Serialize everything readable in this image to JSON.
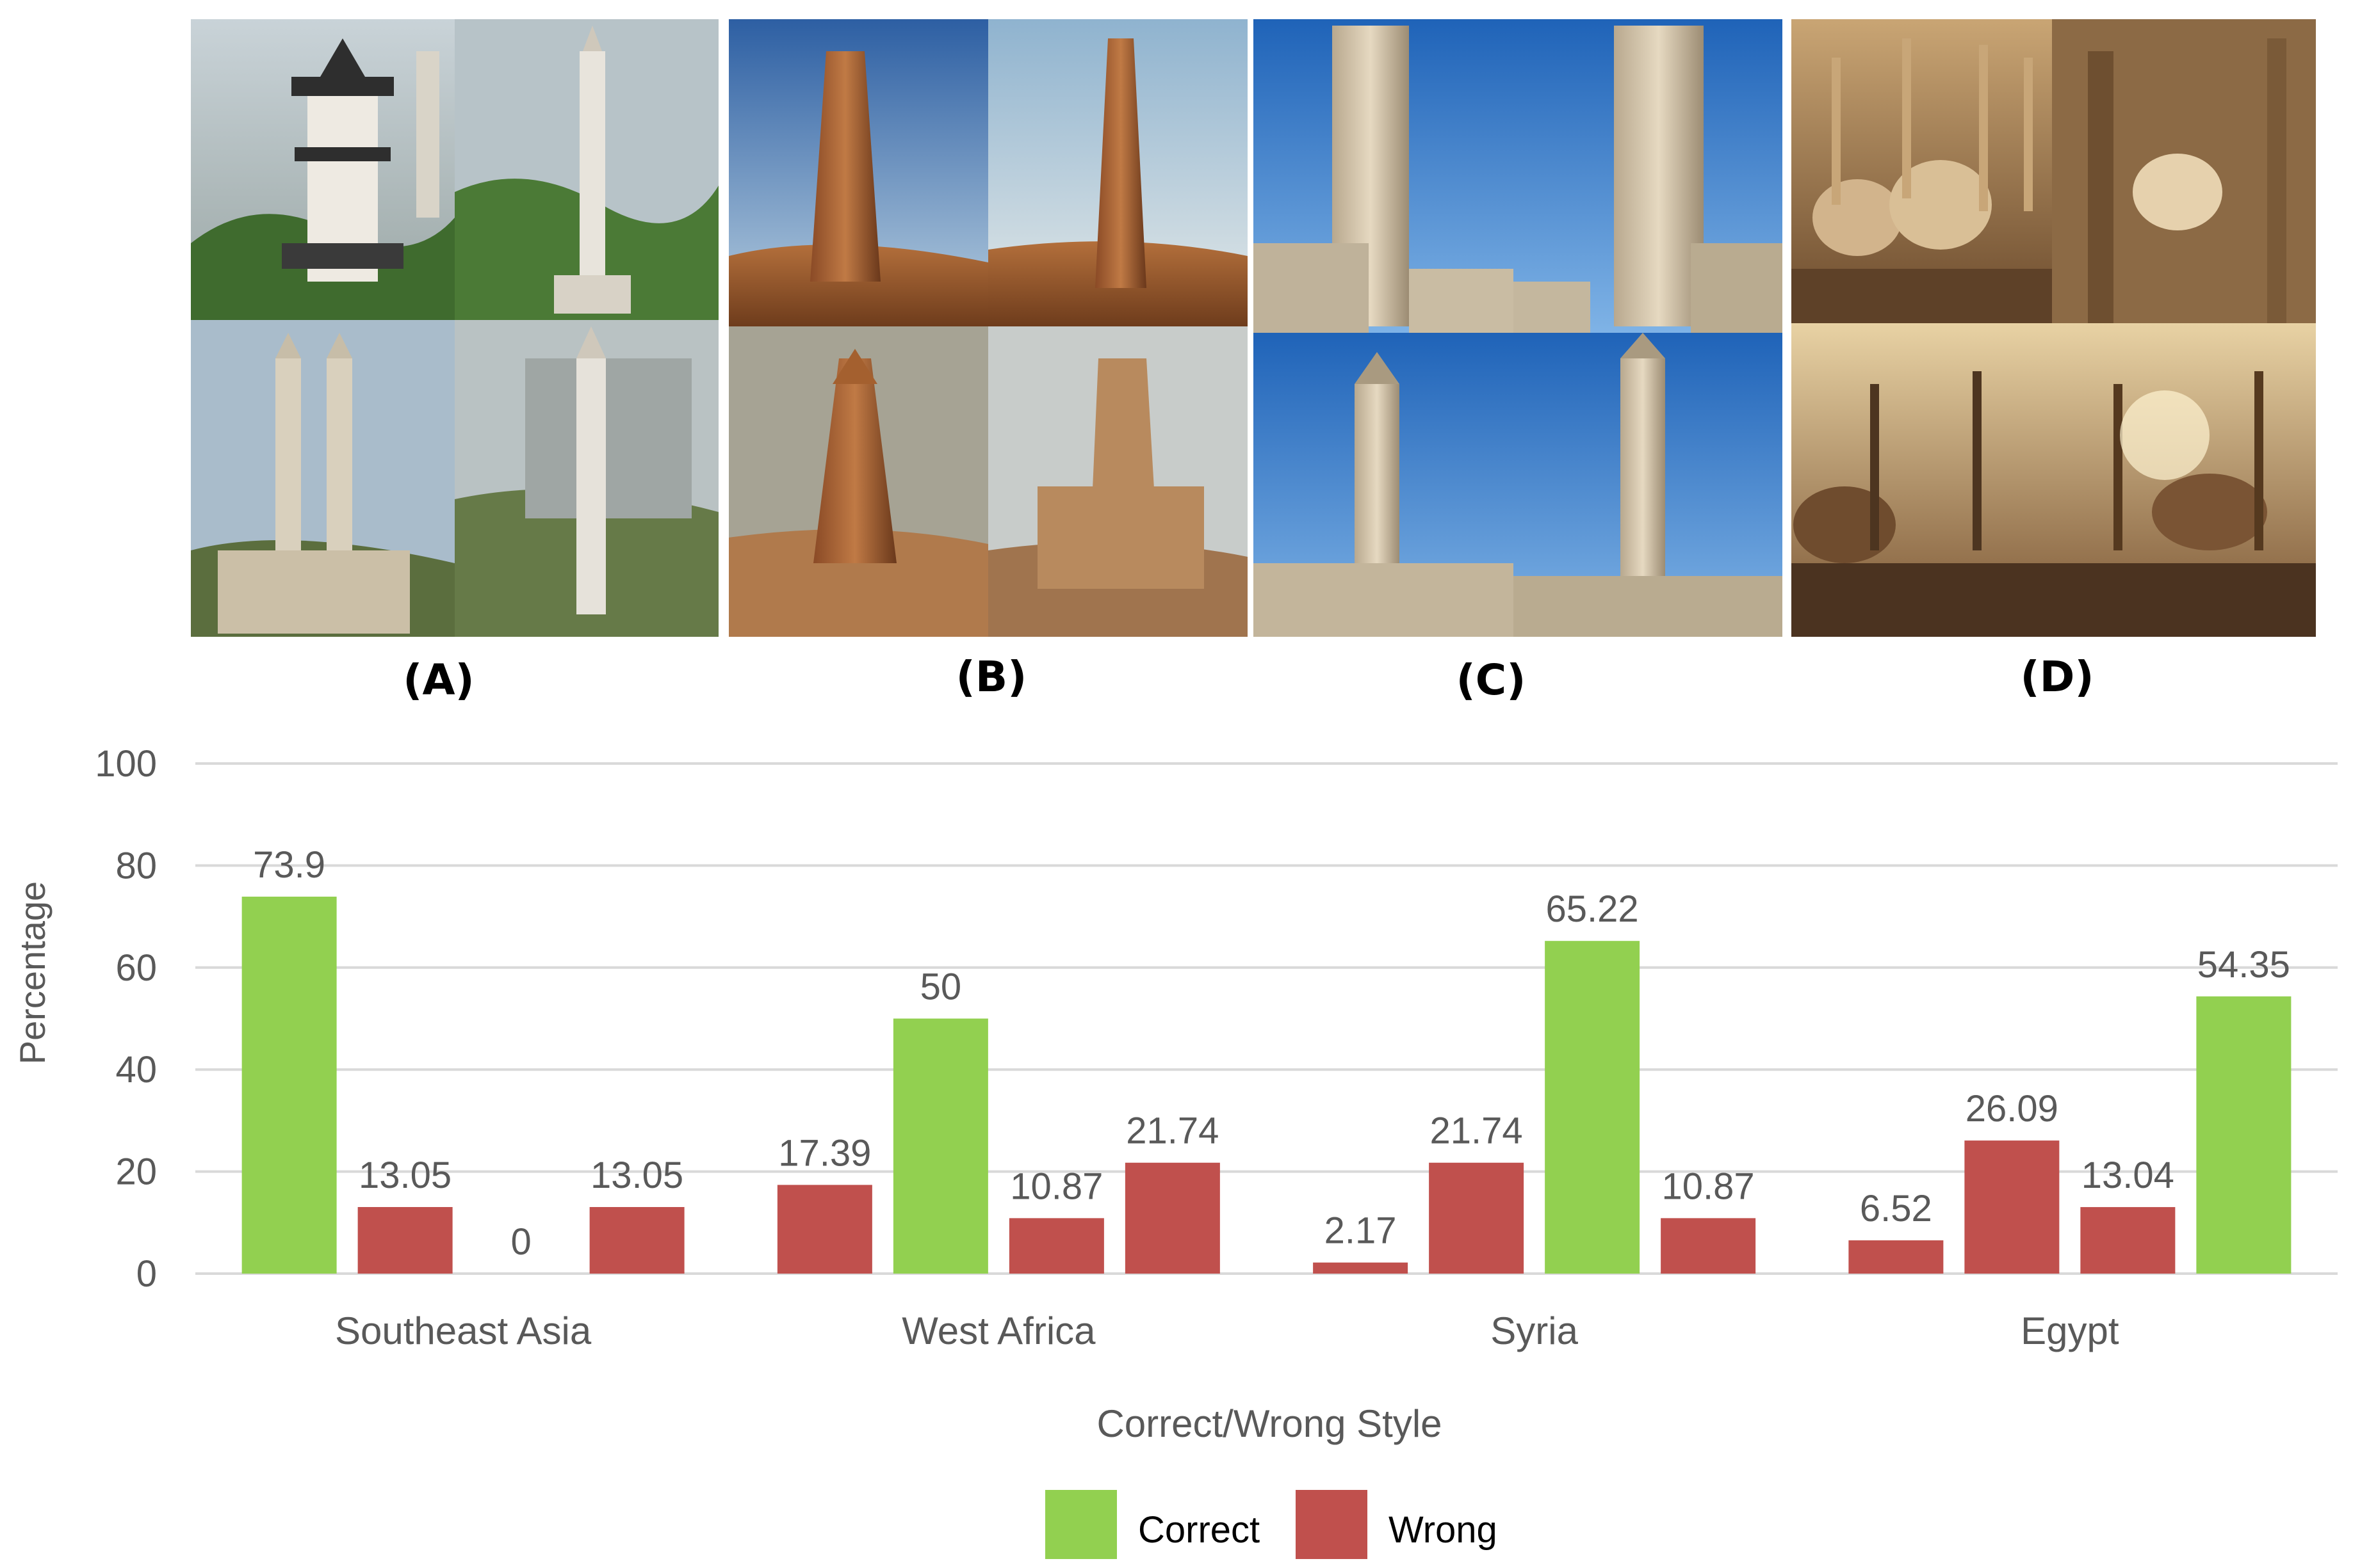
{
  "panels": [
    {
      "label": "(A)",
      "region": "Southeast Asia"
    },
    {
      "label": "(B)",
      "region": "West Africa"
    },
    {
      "label": "(C)",
      "region": "Syria"
    },
    {
      "label": "(D)",
      "region": "Egypt"
    }
  ],
  "colors": {
    "correct": "#92d050",
    "wrong": "#c0504d",
    "grid": "#d9d9d9",
    "axis_text": "#595959"
  },
  "chart_data": {
    "type": "bar",
    "title": "",
    "xlabel": "Correct/Wrong Style",
    "ylabel": "Percentage",
    "ylim": [
      0,
      100
    ],
    "yticks": [
      0,
      20,
      40,
      60,
      80,
      100
    ],
    "grid": true,
    "legend_position": "bottom",
    "categories": [
      "Southeast Asia",
      "West Africa",
      "Syria",
      "Egypt"
    ],
    "legend": [
      {
        "name": "Correct",
        "color": "#92d050"
      },
      {
        "name": "Wrong",
        "color": "#c0504d"
      }
    ],
    "groups": [
      {
        "category": "Southeast Asia",
        "bars": [
          {
            "value": 73.9,
            "label": "73.9",
            "status": "Correct"
          },
          {
            "value": 13.05,
            "label": "13.05",
            "status": "Wrong"
          },
          {
            "value": 0,
            "label": "0",
            "status": "Wrong"
          },
          {
            "value": 13.05,
            "label": "13.05",
            "status": "Wrong"
          }
        ]
      },
      {
        "category": "West Africa",
        "bars": [
          {
            "value": 17.39,
            "label": "17.39",
            "status": "Wrong"
          },
          {
            "value": 50,
            "label": "50",
            "status": "Correct"
          },
          {
            "value": 10.87,
            "label": "10.87",
            "status": "Wrong"
          },
          {
            "value": 21.74,
            "label": "21.74",
            "status": "Wrong"
          }
        ]
      },
      {
        "category": "Syria",
        "bars": [
          {
            "value": 2.17,
            "label": "2.17",
            "status": "Wrong"
          },
          {
            "value": 21.74,
            "label": "21.74",
            "status": "Wrong"
          },
          {
            "value": 65.22,
            "label": "65.22",
            "status": "Correct"
          },
          {
            "value": 10.87,
            "label": "10.87",
            "status": "Wrong"
          }
        ]
      },
      {
        "category": "Egypt",
        "bars": [
          {
            "value": 6.52,
            "label": "6.52",
            "status": "Wrong"
          },
          {
            "value": 26.09,
            "label": "26.09",
            "status": "Wrong"
          },
          {
            "value": 13.04,
            "label": "13.04",
            "status": "Wrong"
          },
          {
            "value": 54.35,
            "label": "54.35",
            "status": "Correct"
          }
        ]
      }
    ]
  }
}
